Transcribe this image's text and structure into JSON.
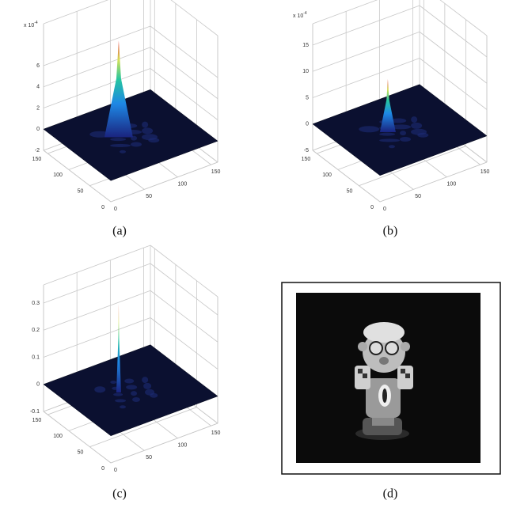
{
  "panels": [
    {
      "caption": "(a)",
      "multiplier": {
        "base": "x 10",
        "exponent": "-4"
      },
      "zticks": [
        -2,
        0,
        2,
        4,
        6
      ],
      "yticks": [
        0,
        50,
        100,
        150
      ],
      "xticks": [
        0,
        50,
        100,
        150
      ]
    },
    {
      "caption": "(b)",
      "multiplier": {
        "base": "x 10",
        "exponent": "-4"
      },
      "zticks": [
        -5,
        0,
        5,
        10,
        15
      ],
      "yticks": [
        0,
        50,
        100,
        150
      ],
      "xticks": [
        0,
        50,
        100,
        150
      ]
    },
    {
      "caption": "(c)",
      "zticks": [
        -0.1,
        0,
        0.1,
        0.2,
        0.3
      ],
      "yticks": [
        0,
        50,
        100,
        150
      ],
      "xticks": [
        0,
        50,
        100,
        150
      ]
    },
    {
      "caption": "(d)"
    }
  ]
}
